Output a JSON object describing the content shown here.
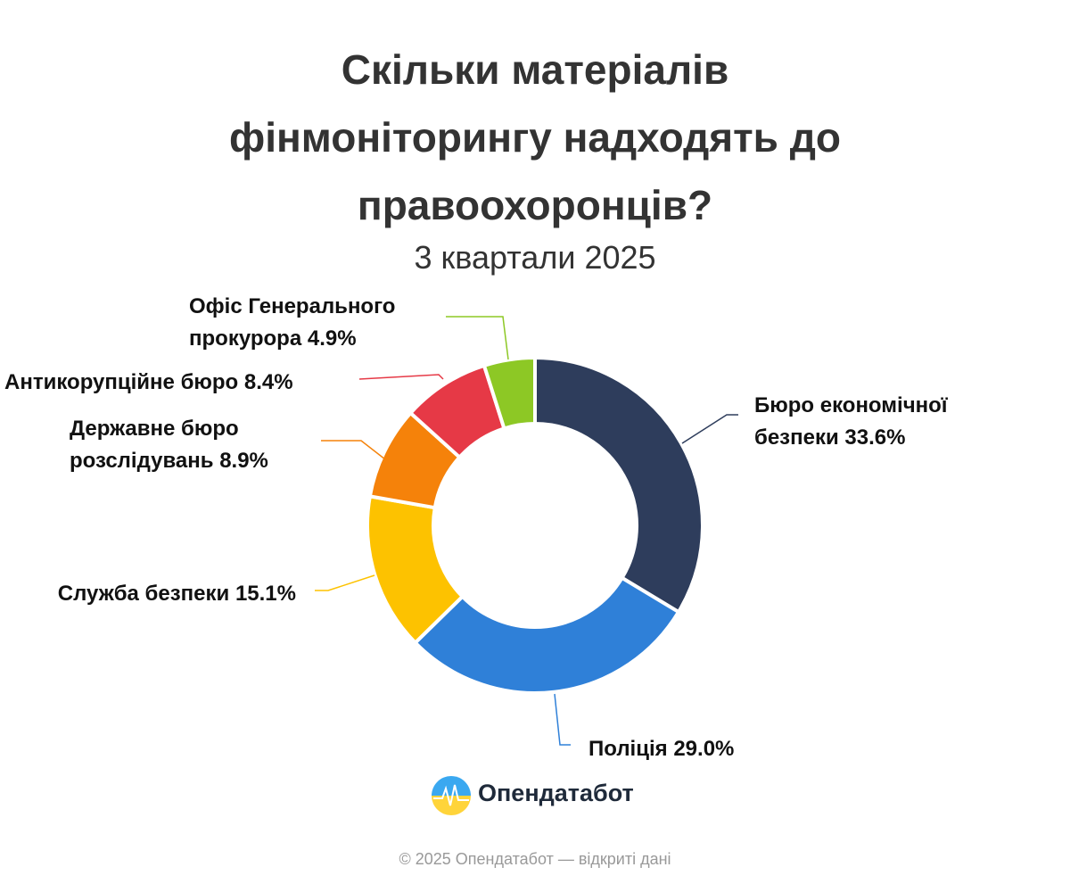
{
  "chart_data": {
    "type": "donut",
    "title": "Скільки матеріалів фінмоніторингу надходять до правоохоронців?",
    "subtitle": "3 квартали 2025",
    "categories": [
      "Бюро економічної безпеки",
      "Поліція",
      "Служба безпеки",
      "Державне бюро розслідувань",
      "Антикорупційне бюро",
      "Офіс Генерального прокурора"
    ],
    "values": [
      33.6,
      29.0,
      15.1,
      8.9,
      8.4,
      4.9
    ],
    "value_labels": [
      "33.6%",
      "29.0%",
      "15.1%",
      "8.9%",
      "8.4%",
      "4.9%"
    ],
    "colors": [
      "#2e3d5c",
      "#2f80d8",
      "#fdc200",
      "#f5820a",
      "#e63946",
      "#8dc825"
    ]
  },
  "brand": "Опендатабот",
  "footer": "© 2025 Опендатабот — відкриті дані"
}
